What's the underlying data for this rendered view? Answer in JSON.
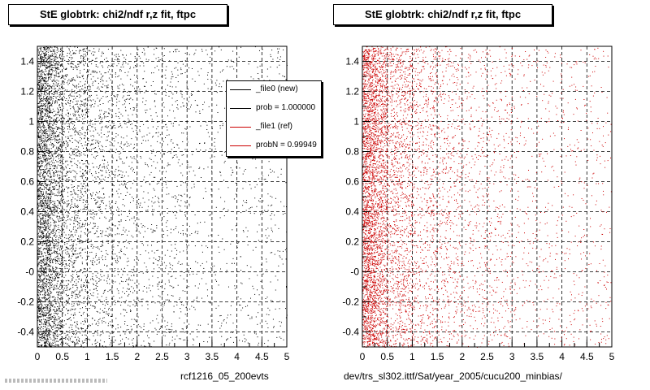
{
  "panels": [
    {
      "title": "StE globtrk: chi2/ndf r,z fit, ftpc",
      "footer": "rcf1216_05_200evts"
    },
    {
      "title": "StE globtrk: chi2/ndf r,z fit, ftpc",
      "footer": "dev/trs_sl302.ittf/Sat/year_2005/cucu200_minbias/"
    }
  ],
  "legend": {
    "entries": [
      {
        "label": "_file0 (new)",
        "color": "#000000"
      },
      {
        "label": "prob = 1.000000",
        "color": "#000000"
      },
      {
        "label": "_file1 (ref)",
        "color": "#cc0000"
      },
      {
        "label": "probN = 0.99949",
        "color": "#cc0000"
      }
    ]
  },
  "chart_data": [
    {
      "type": "scatter",
      "title": "StE globtrk: chi2/ndf r,z fit, ftpc",
      "xlabel": "",
      "ylabel": "",
      "xlim": [
        0,
        5
      ],
      "ylim": [
        -0.5,
        1.5
      ],
      "xticks": [
        "0",
        "0.5",
        "1",
        "1.5",
        "2",
        "2.5",
        "3",
        "3.5",
        "4",
        "4.5",
        "5"
      ],
      "yticks": [
        "-0.4",
        "-0.2",
        "-0",
        "0.2",
        "0.4",
        "0.6",
        "0.8",
        "1",
        "1.2",
        "1.4"
      ],
      "grid": true,
      "series": [
        {
          "name": "_file0 (new)",
          "color": "#000000"
        }
      ],
      "density": [
        {
          "x_range": [
            0,
            0.25
          ],
          "share": 0.3
        },
        {
          "x_range": [
            0.25,
            0.5
          ],
          "share": 0.18
        },
        {
          "x_range": [
            0.5,
            1.0
          ],
          "share": 0.17
        },
        {
          "x_range": [
            1.0,
            1.5
          ],
          "share": 0.1
        },
        {
          "x_range": [
            1.5,
            2.0
          ],
          "share": 0.07
        },
        {
          "x_range": [
            2.0,
            3.0
          ],
          "share": 0.09
        },
        {
          "x_range": [
            3.0,
            5.0
          ],
          "share": 0.09
        }
      ]
    },
    {
      "type": "scatter",
      "title": "StE globtrk: chi2/ndf r,z fit, ftpc",
      "xlabel": "",
      "ylabel": "",
      "xlim": [
        0,
        5
      ],
      "ylim": [
        -0.5,
        1.5
      ],
      "xticks": [
        "0",
        "0.5",
        "1",
        "1.5",
        "2",
        "2.5",
        "3",
        "3.5",
        "4",
        "4.5",
        "5"
      ],
      "yticks": [
        "-0.4",
        "-0.2",
        "-0",
        "0.2",
        "0.4",
        "0.6",
        "0.8",
        "1",
        "1.2",
        "1.4"
      ],
      "grid": true,
      "series": [
        {
          "name": "_file1 (ref)",
          "color": "#cc0000"
        }
      ],
      "density": [
        {
          "x_range": [
            0,
            0.25
          ],
          "share": 0.3
        },
        {
          "x_range": [
            0.25,
            0.5
          ],
          "share": 0.18
        },
        {
          "x_range": [
            0.5,
            1.0
          ],
          "share": 0.17
        },
        {
          "x_range": [
            1.0,
            1.5
          ],
          "share": 0.1
        },
        {
          "x_range": [
            1.5,
            2.0
          ],
          "share": 0.07
        },
        {
          "x_range": [
            2.0,
            3.0
          ],
          "share": 0.09
        },
        {
          "x_range": [
            3.0,
            5.0
          ],
          "share": 0.09
        }
      ]
    }
  ]
}
